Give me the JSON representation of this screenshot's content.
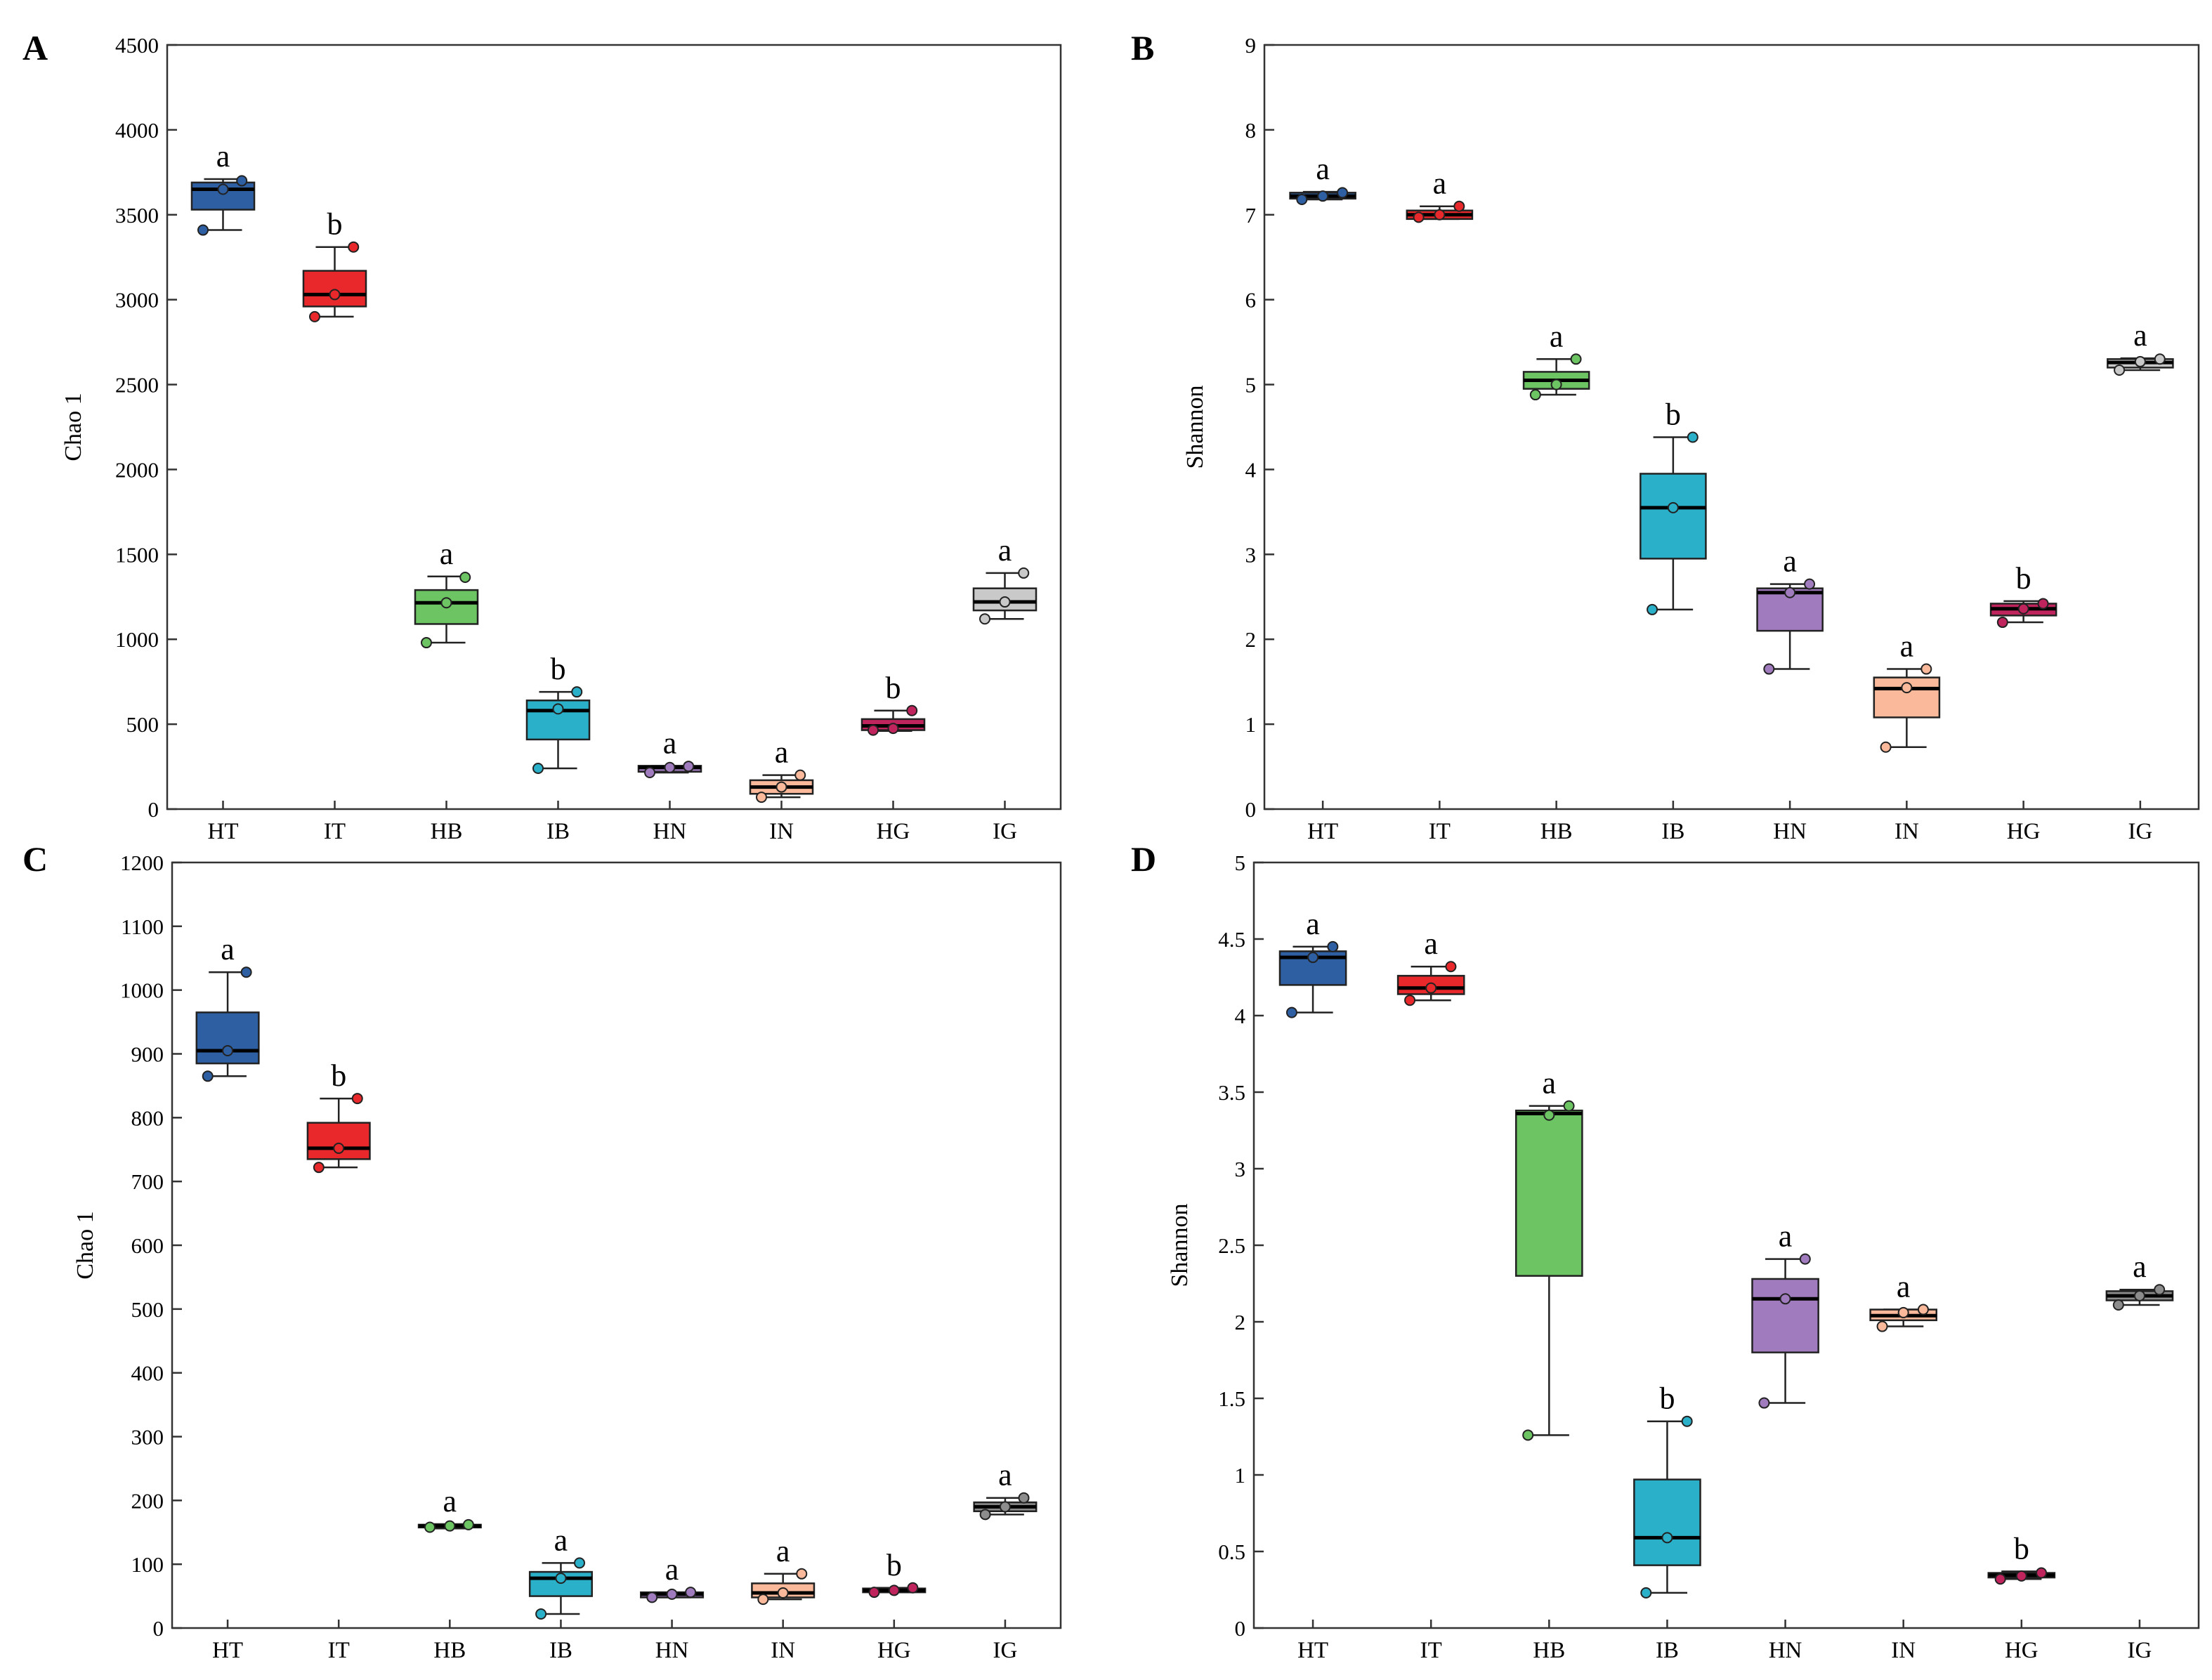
{
  "chart_data": [
    {
      "id": "A",
      "type": "box",
      "panel_letter": "A",
      "ylabel": "Chao 1",
      "xlabel": "",
      "ylim": [
        0,
        4500
      ],
      "yticks": [
        "0",
        "500",
        "1000",
        "1500",
        "2000",
        "2500",
        "3000",
        "3500",
        "4000",
        "4500"
      ],
      "categories": [
        "HT",
        "IT",
        "HB",
        "IB",
        "HN",
        "IN",
        "HG",
        "IG"
      ],
      "groups": [
        {
          "cat": "HT",
          "q1": 3530,
          "median": 3650,
          "q3": 3690,
          "whislo": 3410,
          "whishi": 3710,
          "points": [
            3410,
            3650,
            3700
          ],
          "sig": "a",
          "color": "#2e5fa3"
        },
        {
          "cat": "IT",
          "q1": 2960,
          "median": 3030,
          "q3": 3170,
          "whislo": 2900,
          "whishi": 3310,
          "points": [
            2900,
            3030,
            3310
          ],
          "sig": "b",
          "color": "#e8282a"
        },
        {
          "cat": "HB",
          "q1": 1090,
          "median": 1215,
          "q3": 1290,
          "whislo": 980,
          "whishi": 1370,
          "points": [
            980,
            1215,
            1365
          ],
          "sig": "a",
          "color": "#6cc463"
        },
        {
          "cat": "IB",
          "q1": 410,
          "median": 580,
          "q3": 640,
          "whislo": 240,
          "whishi": 690,
          "points": [
            240,
            590,
            690
          ],
          "sig": "b",
          "color": "#2bb0c9"
        },
        {
          "cat": "HN",
          "q1": 220,
          "median": 245,
          "q3": 255,
          "whislo": 215,
          "whishi": 255,
          "points": [
            215,
            245,
            252
          ],
          "sig": "a",
          "color": "#a07bbd"
        },
        {
          "cat": "IN",
          "q1": 90,
          "median": 130,
          "q3": 170,
          "whislo": 70,
          "whishi": 200,
          "points": [
            70,
            130,
            200
          ],
          "sig": "a",
          "color": "#f9b99a"
        },
        {
          "cat": "HG",
          "q1": 465,
          "median": 490,
          "q3": 530,
          "whislo": 460,
          "whishi": 580,
          "points": [
            465,
            475,
            580
          ],
          "sig": "b",
          "color": "#c0245d"
        },
        {
          "cat": "IG",
          "q1": 1170,
          "median": 1220,
          "q3": 1300,
          "whislo": 1120,
          "whishi": 1390,
          "points": [
            1120,
            1220,
            1390
          ],
          "sig": "a",
          "color": "#c9c9c9"
        }
      ]
    },
    {
      "id": "B",
      "type": "box",
      "panel_letter": "B",
      "ylabel": "Shannon",
      "xlabel": "",
      "ylim": [
        0,
        9
      ],
      "yticks": [
        "0",
        "1",
        "2",
        "3",
        "4",
        "5",
        "6",
        "7",
        "8",
        "9"
      ],
      "categories": [
        "HT",
        "IT",
        "HB",
        "IB",
        "HN",
        "IN",
        "HG",
        "IG"
      ],
      "groups": [
        {
          "cat": "HT",
          "q1": 7.19,
          "median": 7.22,
          "q3": 7.26,
          "whislo": 7.18,
          "whishi": 7.27,
          "points": [
            7.18,
            7.22,
            7.26
          ],
          "sig": "a",
          "color": "#2e5fa3"
        },
        {
          "cat": "IT",
          "q1": 6.95,
          "median": 7.0,
          "q3": 7.05,
          "whislo": 6.95,
          "whishi": 7.1,
          "points": [
            6.97,
            7.0,
            7.1
          ],
          "sig": "a",
          "color": "#e8282a"
        },
        {
          "cat": "HB",
          "q1": 4.95,
          "median": 5.05,
          "q3": 5.15,
          "whislo": 4.88,
          "whishi": 5.3,
          "points": [
            4.88,
            5.0,
            5.3
          ],
          "sig": "a",
          "color": "#6cc463"
        },
        {
          "cat": "IB",
          "q1": 2.95,
          "median": 3.55,
          "q3": 3.95,
          "whislo": 2.35,
          "whishi": 4.38,
          "points": [
            2.35,
            3.55,
            4.38
          ],
          "sig": "b",
          "color": "#2bb0c9"
        },
        {
          "cat": "HN",
          "q1": 2.1,
          "median": 2.55,
          "q3": 2.6,
          "whislo": 1.65,
          "whishi": 2.65,
          "points": [
            1.65,
            2.55,
            2.65
          ],
          "sig": "a",
          "color": "#a07bbd"
        },
        {
          "cat": "IN",
          "q1": 1.08,
          "median": 1.42,
          "q3": 1.55,
          "whislo": 0.73,
          "whishi": 1.65,
          "points": [
            0.73,
            1.43,
            1.65
          ],
          "sig": "a",
          "color": "#f9b99a"
        },
        {
          "cat": "HG",
          "q1": 2.28,
          "median": 2.36,
          "q3": 2.42,
          "whislo": 2.2,
          "whishi": 2.45,
          "points": [
            2.2,
            2.36,
            2.42
          ],
          "sig": "b",
          "color": "#c0245d"
        },
        {
          "cat": "IG",
          "q1": 5.2,
          "median": 5.26,
          "q3": 5.3,
          "whislo": 5.17,
          "whishi": 5.31,
          "points": [
            5.17,
            5.27,
            5.3
          ],
          "sig": "a",
          "color": "#c9c9c9"
        }
      ]
    },
    {
      "id": "C",
      "type": "box",
      "panel_letter": "C",
      "ylabel": "Chao 1",
      "xlabel": "",
      "ylim": [
        0,
        1200
      ],
      "yticks": [
        "0",
        "100",
        "200",
        "300",
        "400",
        "500",
        "600",
        "700",
        "800",
        "900",
        "1000",
        "1100",
        "1200"
      ],
      "categories": [
        "HT",
        "IT",
        "HB",
        "IB",
        "HN",
        "IN",
        "HG",
        "IG"
      ],
      "groups": [
        {
          "cat": "HT",
          "q1": 885,
          "median": 905,
          "q3": 965,
          "whislo": 865,
          "whishi": 1028,
          "points": [
            865,
            905,
            1028
          ],
          "sig": "a",
          "color": "#2e5fa3"
        },
        {
          "cat": "IT",
          "q1": 735,
          "median": 752,
          "q3": 792,
          "whislo": 722,
          "whishi": 830,
          "points": [
            722,
            752,
            830
          ],
          "sig": "b",
          "color": "#e8282a"
        },
        {
          "cat": "HB",
          "q1": 158,
          "median": 160,
          "q3": 162,
          "whislo": 156,
          "whishi": 163,
          "points": [
            158,
            160,
            162
          ],
          "sig": "a",
          "color": "#6cc463"
        },
        {
          "cat": "IB",
          "q1": 50,
          "median": 78,
          "q3": 88,
          "whislo": 22,
          "whishi": 102,
          "points": [
            22,
            78,
            102
          ],
          "sig": "a",
          "color": "#2bb0c9"
        },
        {
          "cat": "HN",
          "q1": 48,
          "median": 53,
          "q3": 56,
          "whislo": 48,
          "whishi": 56,
          "points": [
            48,
            53,
            56
          ],
          "sig": "a",
          "color": "#a07bbd"
        },
        {
          "cat": "IN",
          "q1": 48,
          "median": 55,
          "q3": 70,
          "whislo": 45,
          "whishi": 85,
          "points": [
            45,
            55,
            85
          ],
          "sig": "a",
          "color": "#f9b99a"
        },
        {
          "cat": "HG",
          "q1": 56,
          "median": 59,
          "q3": 62,
          "whislo": 56,
          "whishi": 63,
          "points": [
            56,
            59,
            63
          ],
          "sig": "b",
          "color": "#c0245d"
        },
        {
          "cat": "IG",
          "q1": 183,
          "median": 190,
          "q3": 197,
          "whislo": 178,
          "whishi": 204,
          "points": [
            178,
            190,
            204
          ],
          "sig": "a",
          "color": "#8c8c8c"
        }
      ]
    },
    {
      "id": "D",
      "type": "box",
      "panel_letter": "D",
      "ylabel": "Shannon",
      "xlabel": "",
      "ylim": [
        0,
        5
      ],
      "yticks": [
        "0",
        "0.5",
        "1",
        "1.5",
        "2",
        "2.5",
        "3",
        "3.5",
        "4",
        "4.5",
        "5"
      ],
      "categories": [
        "HT",
        "IT",
        "HB",
        "IB",
        "HN",
        "IN",
        "HG",
        "IG"
      ],
      "groups": [
        {
          "cat": "HT",
          "q1": 4.2,
          "median": 4.38,
          "q3": 4.42,
          "whislo": 4.02,
          "whishi": 4.45,
          "points": [
            4.02,
            4.38,
            4.45
          ],
          "sig": "a",
          "color": "#2e5fa3"
        },
        {
          "cat": "IT",
          "q1": 4.14,
          "median": 4.18,
          "q3": 4.26,
          "whislo": 4.1,
          "whishi": 4.32,
          "points": [
            4.1,
            4.18,
            4.32
          ],
          "sig": "a",
          "color": "#e8282a"
        },
        {
          "cat": "HB",
          "q1": 2.3,
          "median": 3.36,
          "q3": 3.38,
          "whislo": 1.26,
          "whishi": 3.41,
          "points": [
            1.26,
            3.35,
            3.41
          ],
          "sig": "a",
          "color": "#6cc463"
        },
        {
          "cat": "IB",
          "q1": 0.41,
          "median": 0.59,
          "q3": 0.97,
          "whislo": 0.23,
          "whishi": 1.35,
          "points": [
            0.23,
            0.59,
            1.35
          ],
          "sig": "b",
          "color": "#2bb0c9"
        },
        {
          "cat": "HN",
          "q1": 1.8,
          "median": 2.15,
          "q3": 2.28,
          "whislo": 1.47,
          "whishi": 2.41,
          "points": [
            1.47,
            2.15,
            2.41
          ],
          "sig": "a",
          "color": "#a07bbd"
        },
        {
          "cat": "IN",
          "q1": 2.01,
          "median": 2.04,
          "q3": 2.08,
          "whislo": 1.97,
          "whishi": 2.08,
          "points": [
            1.97,
            2.06,
            2.08
          ],
          "sig": "a",
          "color": "#f9b99a"
        },
        {
          "cat": "HG",
          "q1": 0.33,
          "median": 0.345,
          "q3": 0.36,
          "whislo": 0.32,
          "whishi": 0.37,
          "points": [
            0.32,
            0.34,
            0.36
          ],
          "sig": "b",
          "color": "#c0245d"
        },
        {
          "cat": "IG",
          "q1": 2.14,
          "median": 2.17,
          "q3": 2.2,
          "whislo": 2.11,
          "whishi": 2.21,
          "points": [
            2.11,
            2.17,
            2.21
          ],
          "sig": "a",
          "color": "#8c8c8c"
        }
      ]
    }
  ]
}
